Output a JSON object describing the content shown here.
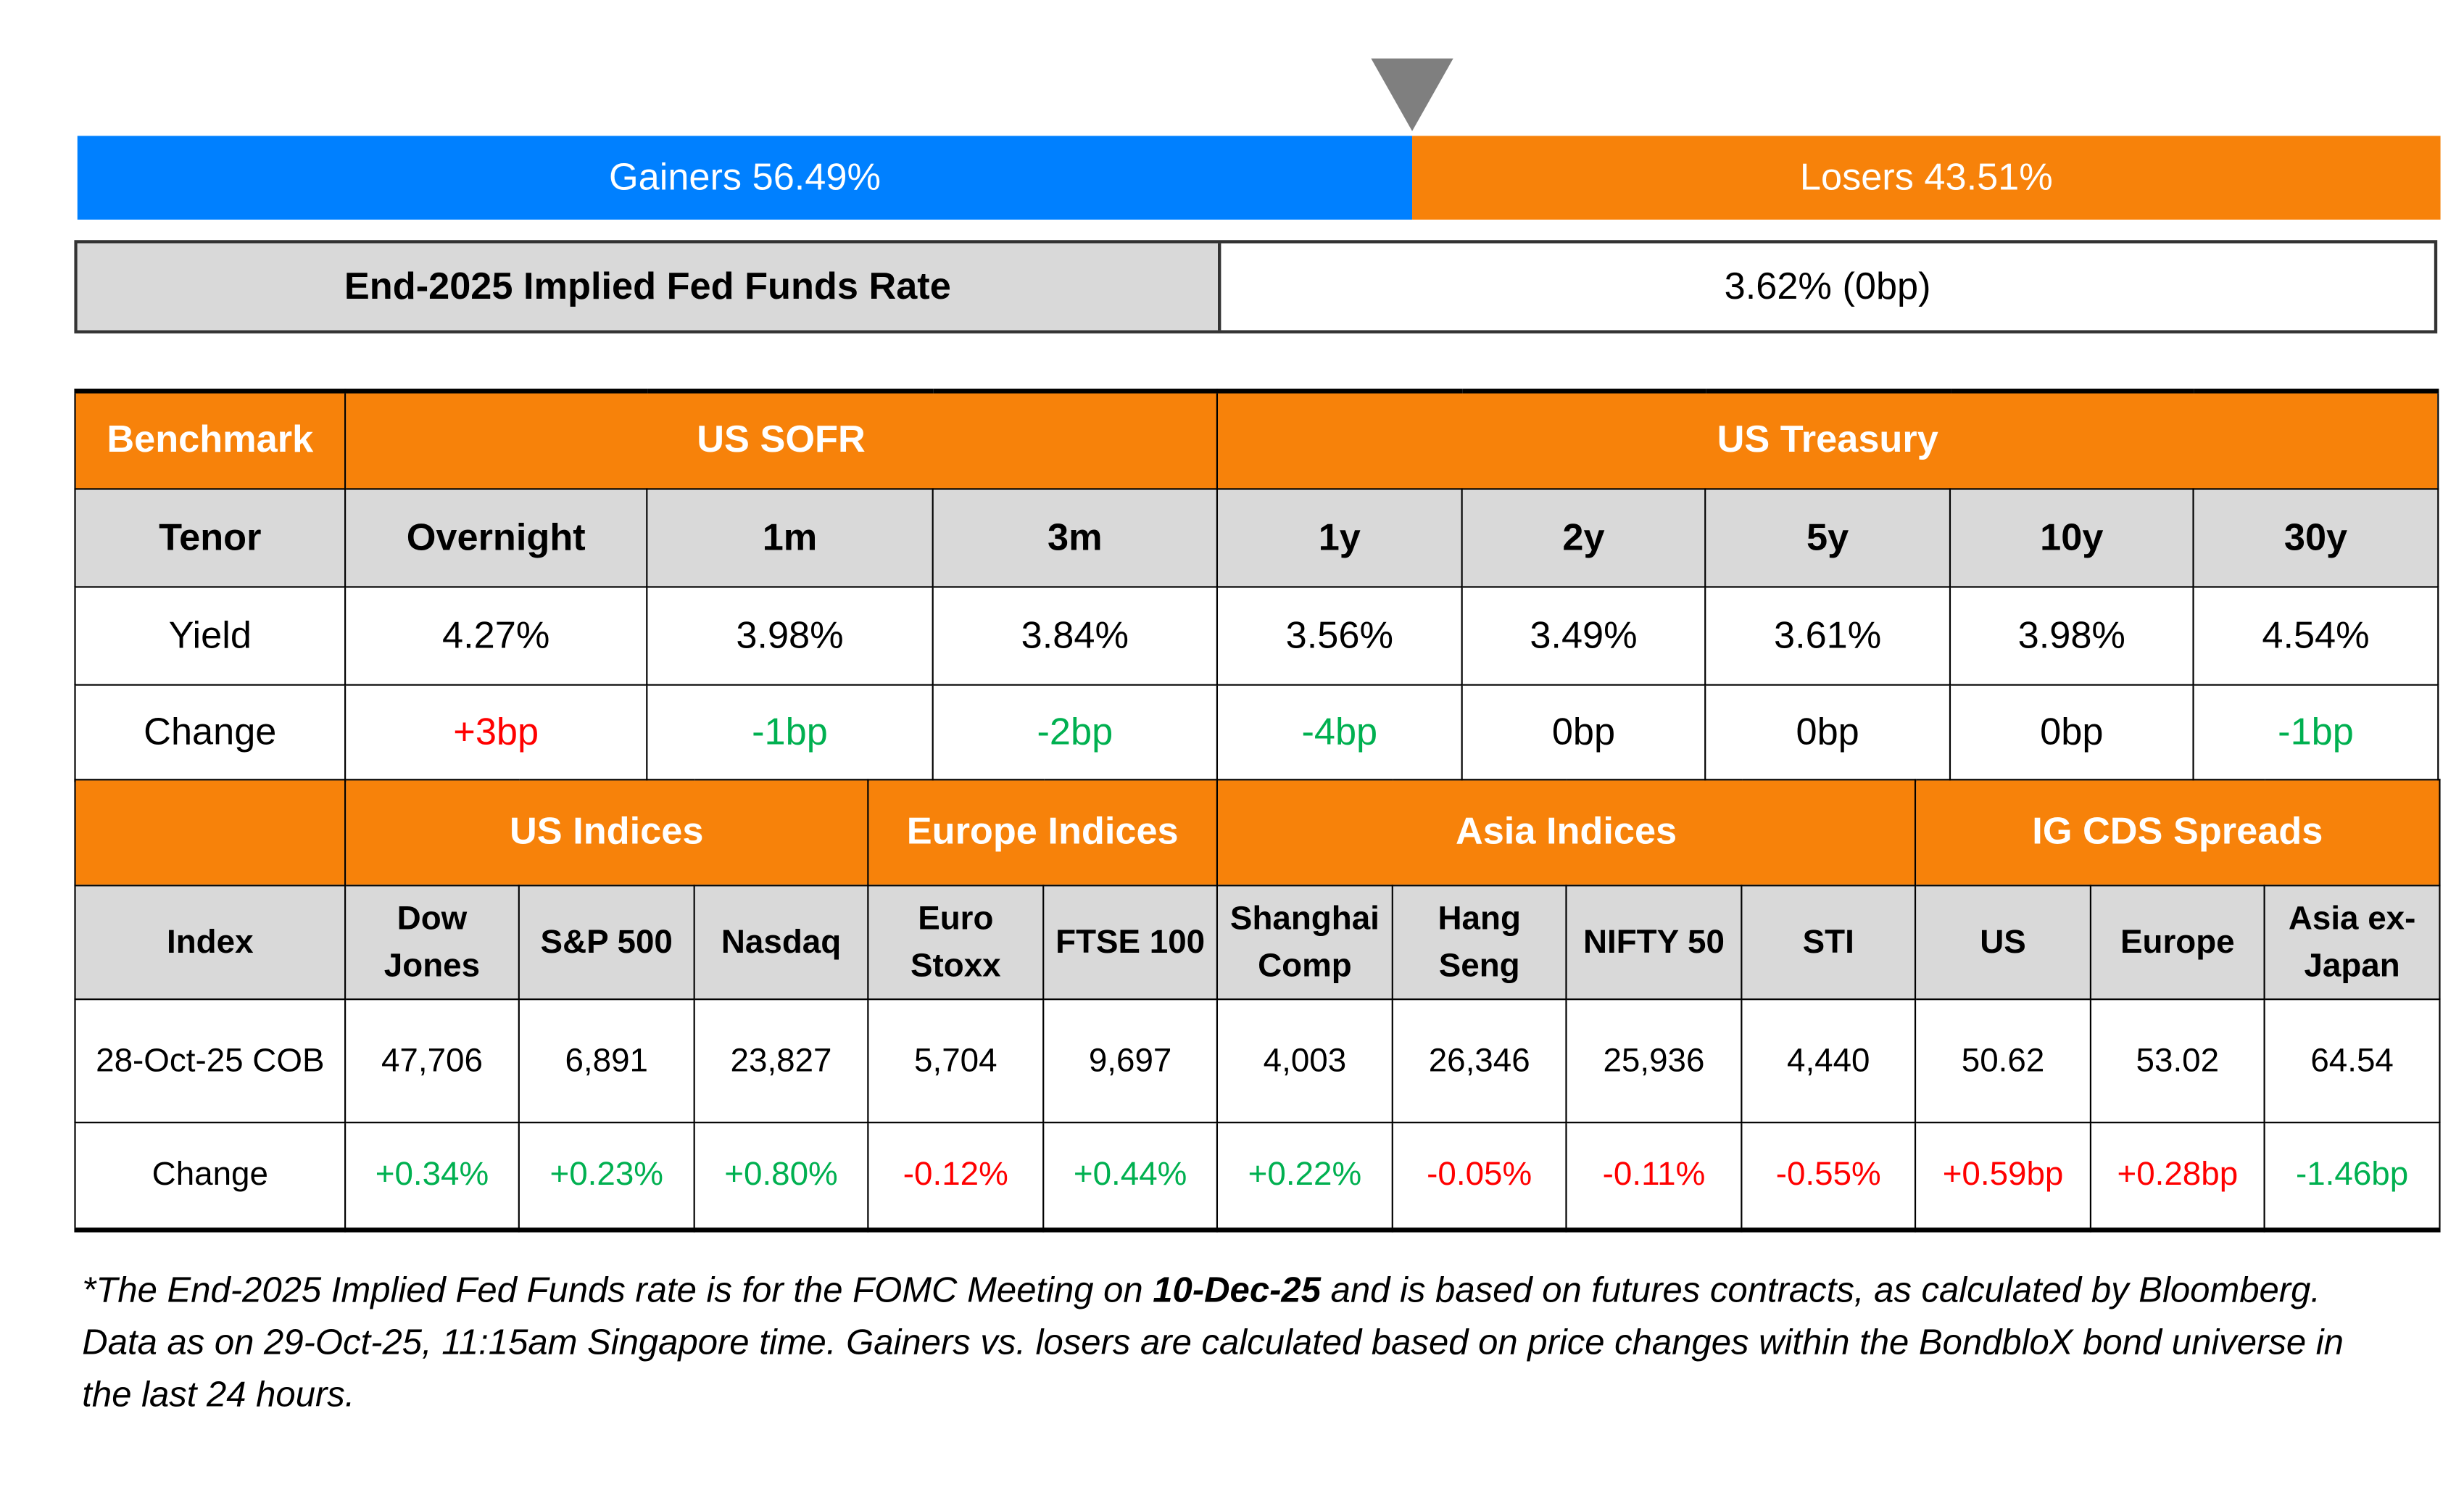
{
  "sentiment": {
    "gainers_label": "Gainers 56.49%",
    "losers_label": "Losers 43.51%",
    "gainers_pct": 56.49,
    "losers_pct": 43.51,
    "colors": {
      "gainers": "#0080ff",
      "losers": "#f7820a"
    }
  },
  "fed": {
    "label": "End-2025 Implied Fed Funds Rate",
    "value": "3.62% (0bp)"
  },
  "rates": {
    "benchmark_label": "Benchmark",
    "sofr_label": "US SOFR",
    "treasury_label": "US Treasury",
    "tenor_label": "Tenor",
    "tenors": [
      "Overnight",
      "1m",
      "3m",
      "1y",
      "2y",
      "5y",
      "10y",
      "30y"
    ],
    "yield_label": "Yield",
    "yields": [
      "4.27%",
      "3.98%",
      "3.84%",
      "3.56%",
      "3.49%",
      "3.61%",
      "3.98%",
      "4.54%"
    ],
    "change_label": "Change",
    "changes": [
      "+3bp",
      "-1bp",
      "-2bp",
      "-4bp",
      "0bp",
      "0bp",
      "0bp",
      "-1bp"
    ]
  },
  "indices": {
    "groups": [
      "US Indices",
      "Europe Indices",
      "Asia Indices",
      "IG CDS Spreads"
    ],
    "index_label": "Index",
    "names": [
      [
        "Dow",
        "Jones"
      ],
      [
        "S&P 500"
      ],
      [
        "Nasdaq"
      ],
      [
        "Euro",
        "Stoxx"
      ],
      [
        "FTSE 100"
      ],
      [
        "Shanghai",
        "Comp"
      ],
      [
        "Hang",
        "Seng"
      ],
      [
        "NIFTY 50"
      ],
      [
        "STI"
      ],
      [
        "US"
      ],
      [
        "Europe"
      ],
      [
        "Asia ex-",
        "Japan"
      ]
    ],
    "date_label": "28-Oct-25 COB",
    "values": [
      "47,706",
      "6,891",
      "23,827",
      "5,704",
      "9,697",
      "4,003",
      "26,346",
      "25,936",
      "4,440",
      "50.62",
      "53.02",
      "64.54"
    ],
    "change_label": "Change",
    "changes": [
      "+0.34%",
      "+0.23%",
      "+0.80%",
      "-0.12%",
      "+0.44%",
      "+0.22%",
      "-0.05%",
      "-0.11%",
      "-0.55%",
      "+0.59bp",
      "+0.28bp",
      "-1.46bp"
    ],
    "change_colors": [
      "green",
      "green",
      "green",
      "red",
      "green",
      "green",
      "red",
      "red",
      "red",
      "red",
      "red",
      "green"
    ]
  },
  "footnote": {
    "part1": "*The End-2025 Implied Fed Funds rate is for the FOMC Meeting on ",
    "bold": "10-Dec-25",
    "part2": " and is based on futures contracts, as calculated by Bloomberg. Data as on 29-Oct-25, 11:15am Singapore time. Gainers vs. losers are calculated based on price changes within the BondbloX bond universe in the last 24 hours."
  }
}
